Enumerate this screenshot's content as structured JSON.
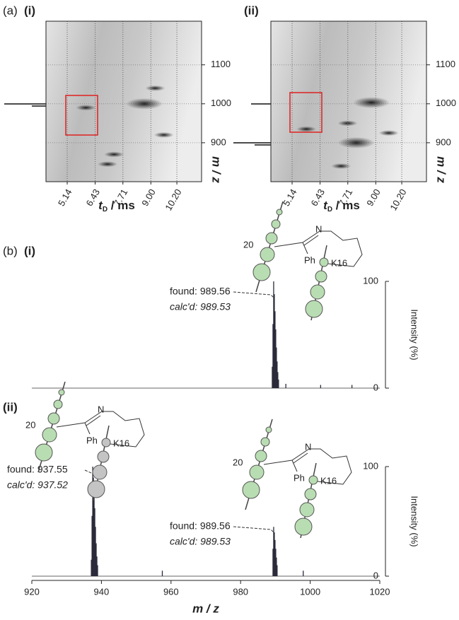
{
  "panel_labels": {
    "a": "(a)",
    "a_i": "(i)",
    "a_ii": "(ii)",
    "b": "(b)",
    "b_i": "(i)",
    "b_ii": "(ii)"
  },
  "chart_data": [
    {
      "type": "heatmap",
      "xlabel": [
        "t",
        "D",
        " / ms"
      ],
      "ylabel": "m / z",
      "xlim": [
        4.16,
        11.34
      ],
      "ylim": [
        800,
        1212
      ],
      "xticks": [
        5.14,
        6.43,
        7.71,
        {
          "value": 9,
          "label": "9.00"
        },
        {
          "value": 10.2,
          "label": "10.20"
        }
      ],
      "yticks": [
        900,
        1000,
        1100
      ],
      "spots": {
        "x": [
          8.7,
          6.0,
          7.3,
          7.0,
          9.2,
          9.6
        ],
        "y": [
          1000,
          990,
          870,
          845,
          1040,
          920
        ]
      }
    },
    {
      "type": "heatmap",
      "xlabel": [
        "t",
        "D",
        " / ms"
      ],
      "ylabel": "m / z",
      "xlim": [
        4.16,
        11.34
      ],
      "ylim": [
        800,
        1212
      ],
      "xticks": [
        5.14,
        6.43,
        7.71,
        {
          "value": 9,
          "label": "9.00"
        },
        {
          "value": 10.2,
          "label": "10.20"
        }
      ],
      "yticks": [
        900,
        1000,
        1100
      ],
      "spots": {
        "x": [
          8.1,
          8.8,
          5.8,
          7.7,
          7.4,
          9.6
        ],
        "y": [
          900,
          1003,
          935,
          950,
          840,
          925
        ]
      }
    },
    {
      "type": "stick",
      "ylabel": "Intensity (%)",
      "xlim": [
        920,
        1020
      ],
      "ylim": [
        0,
        100
      ],
      "yticks": [
        0,
        100
      ],
      "color": "#2b2b3b",
      "x": [
        989.1,
        989.3,
        989.5,
        989.7,
        989.9,
        990.1,
        990.3,
        990.5,
        990.7,
        990.9,
        993.0,
        1003.0,
        1012.0
      ],
      "values": [
        20,
        60,
        100,
        88,
        72,
        55,
        38,
        25,
        15,
        8,
        4,
        3,
        3
      ],
      "annotations": [
        {
          "found": "found: 989.56",
          "calcd": "calc'd: 989.53"
        }
      ],
      "structures": [
        {
          "num": "20",
          "n": "N",
          "ph": "Ph",
          "k": "K16"
        }
      ]
    },
    {
      "type": "stick",
      "xlabel": "m / z",
      "ylabel": "Intensity (%)",
      "xlim": [
        920,
        1020
      ],
      "ylim": [
        0,
        100
      ],
      "yticks": [
        0,
        100
      ],
      "color": "#2b2b3b",
      "xticks": [
        920,
        940,
        960,
        980,
        1000,
        1020
      ],
      "x": [
        937.1,
        937.3,
        937.5,
        937.7,
        937.9,
        938.1,
        938.3,
        938.5,
        938.7,
        938.9,
        957.5,
        989.3,
        989.5,
        989.7,
        989.9,
        990.1,
        990.3,
        990.5,
        998.0
      ],
      "values": [
        15,
        55,
        100,
        90,
        78,
        62,
        45,
        30,
        18,
        10,
        5,
        25,
        45,
        40,
        33,
        25,
        17,
        10,
        5
      ],
      "annotations": [
        {
          "found": "found: 937.55",
          "calcd": "calc'd: 937.52"
        },
        {
          "found": "found: 989.56",
          "calcd": "calc'd: 989.53"
        }
      ],
      "structures": [
        {
          "num": "20",
          "n": "N",
          "ph": "Ph",
          "k": "K16"
        },
        {
          "num": "20",
          "n": "N",
          "ph": "Ph",
          "k": "K16"
        }
      ]
    }
  ]
}
